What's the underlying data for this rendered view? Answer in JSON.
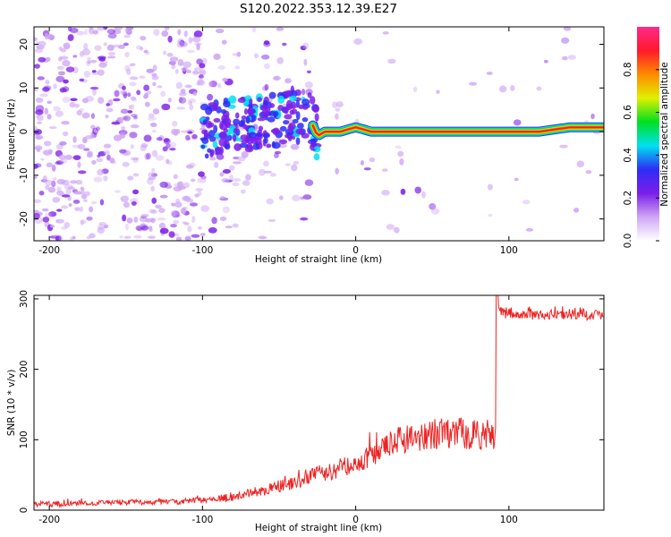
{
  "page": {
    "title": "S120.2022.353.12.39.E27"
  },
  "chart_data": [
    {
      "type": "heatmap",
      "description_free": true,
      "xlabel": "Height of straight line (km)",
      "ylabel": "Frequency (Hz)",
      "xlim": [
        -210,
        162
      ],
      "ylim": [
        -25,
        24
      ],
      "xticks": [
        -200,
        -100,
        0,
        100
      ],
      "yticks": [
        -20,
        -10,
        0,
        10,
        20
      ],
      "xtick_labels": [
        "-200",
        "-100",
        "0",
        "100"
      ],
      "ytick_labels": [
        "-20",
        "-10",
        "0",
        "10",
        "20"
      ],
      "colorbar": {
        "label": "Normalized spectral amplitude",
        "range": [
          0,
          1
        ],
        "ticks": [
          "0.0",
          "0.2",
          "0.4",
          "0.6",
          "0.8"
        ],
        "tick_values": [
          0.0,
          0.2,
          0.4,
          0.6,
          0.8
        ],
        "colors": [
          "#ffffff",
          "#cfa6f5",
          "#7b1ee8",
          "#2d2df5",
          "#00e0f0",
          "#00e020",
          "#e0f000",
          "#ff8a00",
          "#ff1a2a",
          "#ff2a8a"
        ]
      },
      "signal_ridge": {
        "x": [
          -100,
          -80,
          -60,
          -40,
          -30,
          -25,
          -20,
          -10,
          0,
          10,
          50,
          100,
          120,
          140,
          162
        ],
        "y": [
          0,
          2,
          2,
          4,
          3,
          -1,
          0,
          0,
          1,
          0,
          0,
          0,
          0,
          1,
          1
        ]
      },
      "grid": false
    },
    {
      "type": "line",
      "xlabel": "Height of straight line (km)",
      "ylabel": "SNR (10 * v/v)",
      "xlim": [
        -210,
        162
      ],
      "ylim": [
        0,
        305
      ],
      "xticks": [
        -200,
        -100,
        0,
        100
      ],
      "yticks": [
        0,
        100,
        200,
        300
      ],
      "xtick_labels": [
        "-200",
        "-100",
        "0",
        "100"
      ],
      "ytick_labels": [
        "0",
        "100",
        "200",
        "300"
      ],
      "color": "#ee2222",
      "x": [
        -210,
        -180,
        -150,
        -120,
        -100,
        -80,
        -60,
        -40,
        -30,
        -20,
        -10,
        0,
        10,
        20,
        30,
        40,
        60,
        80,
        92,
        92,
        100,
        120,
        140,
        162
      ],
      "y": [
        8,
        10,
        11,
        12,
        14,
        18,
        28,
        38,
        50,
        52,
        60,
        68,
        75,
        90,
        100,
        106,
        110,
        108,
        106,
        280,
        280,
        278,
        278,
        278
      ],
      "grid": false
    }
  ]
}
